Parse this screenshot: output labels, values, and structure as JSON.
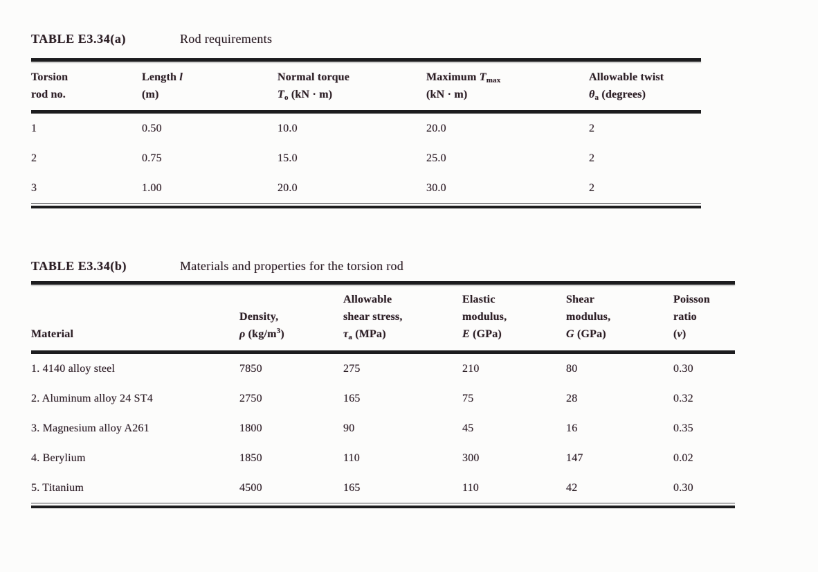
{
  "page": {
    "background_color": "#fcfcfb",
    "text_color": "#2b2024",
    "rule_color": "#1c1c1e"
  },
  "tables": [
    {
      "title_label": "TABLE E3.34(a)",
      "title_caption": "Rod requirements",
      "columns": [
        {
          "label": "Torsion rod no.",
          "html": "Torsion<br>rod no."
        },
        {
          "label": "Length l (m)",
          "html": "Length <i>l</i><br>(m)"
        },
        {
          "label": "Normal torque To (kN · m)",
          "html": "Normal torque<br><i>T</i><sub>o</sub> (kN · m)"
        },
        {
          "label": "Maximum Tmax (kN · m)",
          "html": "Maximum <i>T</i><sub>max</sub><br>(kN · m)"
        },
        {
          "label": "Allowable twist θa (degrees)",
          "html": "Allowable twist<br><i>θ</i><sub>a</sub> (degrees)"
        }
      ],
      "rows": [
        [
          "1",
          "0.50",
          "10.0",
          "20.0",
          "2"
        ],
        [
          "2",
          "0.75",
          "15.0",
          "25.0",
          "2"
        ],
        [
          "3",
          "1.00",
          "20.0",
          "30.0",
          "2"
        ]
      ]
    },
    {
      "title_label": "TABLE E3.34(b)",
      "title_caption": "Materials and properties for the torsion rod",
      "columns": [
        {
          "label": "Material",
          "html": "Material"
        },
        {
          "label": "Density, ρ (kg/m³)",
          "html": "Density,<br><i>ρ</i> (kg/m<sup>3</sup>)"
        },
        {
          "label": "Allowable shear stress, τa (MPa)",
          "html": "Allowable<br>shear stress,<br><i>τ</i><sub>a</sub> (MPa)"
        },
        {
          "label": "Elastic modulus, E (GPa)",
          "html": "Elastic<br>modulus,<br><i>E</i> (GPa)"
        },
        {
          "label": "Shear modulus, G (GPa)",
          "html": "Shear<br>modulus,<br><i>G</i> (GPa)"
        },
        {
          "label": "Poisson ratio (ν)",
          "html": "Poisson<br>ratio<br>(<i>ν</i>)"
        }
      ],
      "rows": [
        [
          "1. 4140 alloy steel",
          "7850",
          "275",
          "210",
          "80",
          "0.30"
        ],
        [
          "2. Aluminum alloy 24 ST4",
          "2750",
          "165",
          "75",
          "28",
          "0.32"
        ],
        [
          "3. Magnesium alloy A261",
          "1800",
          "90",
          "45",
          "16",
          "0.35"
        ],
        [
          "4. Berylium",
          "1850",
          "110",
          "300",
          "147",
          "0.02"
        ],
        [
          "5. Titanium",
          "4500",
          "165",
          "110",
          "42",
          "0.30"
        ]
      ]
    }
  ]
}
